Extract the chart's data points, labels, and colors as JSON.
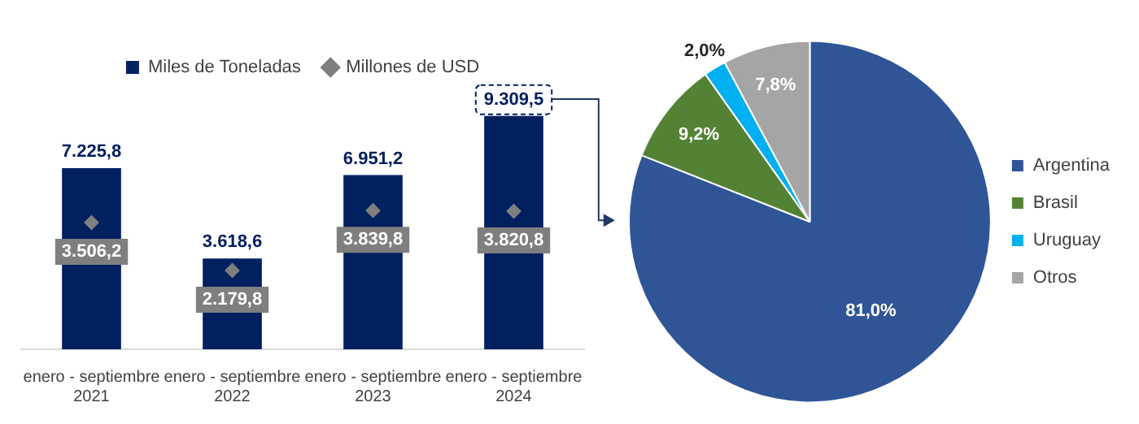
{
  "chart_data": [
    {
      "type": "bar",
      "categories": [
        "enero - septiembre 2021",
        "enero - septiembre 2022",
        "enero - septiembre 2023",
        "enero - septiembre 2024"
      ],
      "series": [
        {
          "name": "Miles de Toneladas",
          "color": "#002060",
          "values": [
            7225.8,
            3618.6,
            6951.2,
            9309.5
          ],
          "value_labels": [
            "7.225,8",
            "3.618,6",
            "6.951,2",
            "9.309,5"
          ]
        },
        {
          "name": "Millones de USD",
          "type": "scatter",
          "axis": "y2",
          "color": "#7f7f7f",
          "values": [
            3506.2,
            2179.8,
            3839.8,
            3820.8
          ],
          "value_labels": [
            "3.506,2",
            "2.179,8",
            "3.839,8",
            "3.820,8"
          ]
        }
      ],
      "legend": "top",
      "marker": "diamond",
      "tick_labels": "x"
    },
    {
      "type": "pie",
      "categories": [
        "Argentina",
        "Brasil",
        "Uruguay",
        "Otros"
      ],
      "values": [
        81.0,
        9.2,
        2.0,
        7.8
      ],
      "colors": [
        "#2f5597",
        "#548235",
        "#00b0f0",
        "#a5a5a5"
      ],
      "value_labels": [
        "81,0%",
        "9,2%",
        "2,0%",
        "7,8%"
      ],
      "legend": "right"
    }
  ]
}
